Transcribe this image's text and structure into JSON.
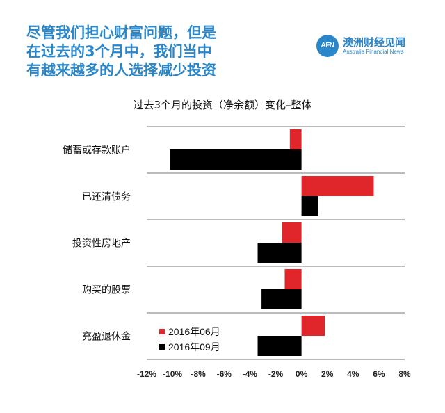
{
  "headline": {
    "lines": [
      "尽管我们担心财富问题，但是",
      "在过去的3个月中，我们当中",
      "有越来越多的人选择减少投资"
    ]
  },
  "logo": {
    "badge": "AFN",
    "name_cn": "澳洲财经见闻",
    "name_en": "Australia Financial News"
  },
  "colors": {
    "accent": "#2a86c9",
    "series_1": "#e0262b",
    "series_2": "#000000"
  },
  "chart_data": {
    "type": "bar",
    "orientation": "horizontal",
    "title": "过去3个月的投资（净余额）变化–整体",
    "categories": [
      "储蓄或存款账户",
      "已还清债务",
      "投资性房地产",
      "购买的股票",
      "充盈退休金"
    ],
    "series": [
      {
        "name": "2016年06月",
        "color": "#e0262b",
        "values": [
          -0.9,
          5.6,
          -1.5,
          -1.3,
          1.8
        ]
      },
      {
        "name": "2016年09月",
        "color": "#000000",
        "values": [
          -10.2,
          1.3,
          -3.4,
          -3.1,
          -3.4
        ]
      }
    ],
    "xlim": [
      -12,
      8
    ],
    "xticks": [
      -12,
      -10,
      -8,
      -6,
      -4,
      -2,
      0,
      2,
      4,
      6,
      8
    ],
    "xtick_labels": [
      "-12%",
      "-10%",
      "-8%",
      "-6%",
      "-4%",
      "-2%",
      "0%",
      "2%",
      "4%",
      "6%",
      "8%"
    ],
    "grid": "horizontal separators",
    "legend_position": "bottom-left"
  }
}
